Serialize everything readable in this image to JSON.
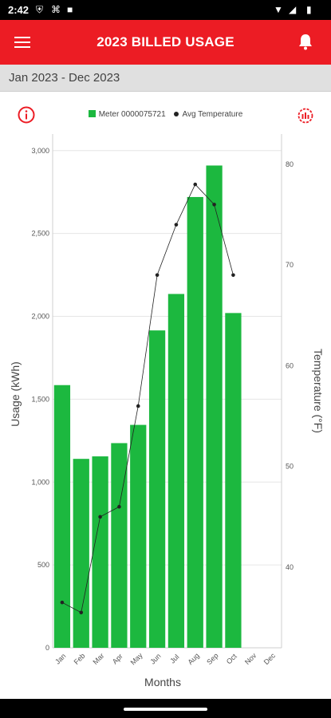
{
  "status": {
    "time": "2:42"
  },
  "header": {
    "title": "2023 BILLED USAGE"
  },
  "date_range": "Jan 2023 - Dec 2023",
  "legend": {
    "meter": "Meter 0000075721",
    "temp": "Avg Temperature"
  },
  "colors": {
    "brand": "#ec1c24",
    "bar": "#1cb83f",
    "line": "#222222"
  },
  "chart_data": {
    "type": "bar",
    "categories": [
      "Jan",
      "Feb",
      "Mar",
      "Apr",
      "May",
      "Jun",
      "Jul",
      "Aug",
      "Sep",
      "Oct",
      "Nov",
      "Dec"
    ],
    "series": [
      {
        "name": "Meter 0000075721",
        "type": "bar",
        "axis": "left",
        "values": [
          1585,
          1140,
          1155,
          1235,
          1345,
          1915,
          2135,
          2720,
          2910,
          2020,
          null,
          null
        ]
      },
      {
        "name": "Avg Temperature",
        "type": "line",
        "axis": "right",
        "values": [
          36.5,
          35.5,
          45,
          46,
          56,
          69,
          74,
          78,
          76,
          69,
          null,
          null
        ]
      }
    ],
    "xlabel": "Months",
    "ylabel": "Usage (kWh)",
    "y2label": "Temperature (°F)",
    "ylim": [
      0,
      3100
    ],
    "y2lim": [
      32,
      83
    ],
    "yticks": [
      "0",
      "500",
      "1,000",
      "1,500",
      "2,000",
      "2,500",
      "3,000"
    ],
    "y2ticks": [
      "40",
      "50",
      "60",
      "70",
      "80"
    ],
    "grid": true
  }
}
